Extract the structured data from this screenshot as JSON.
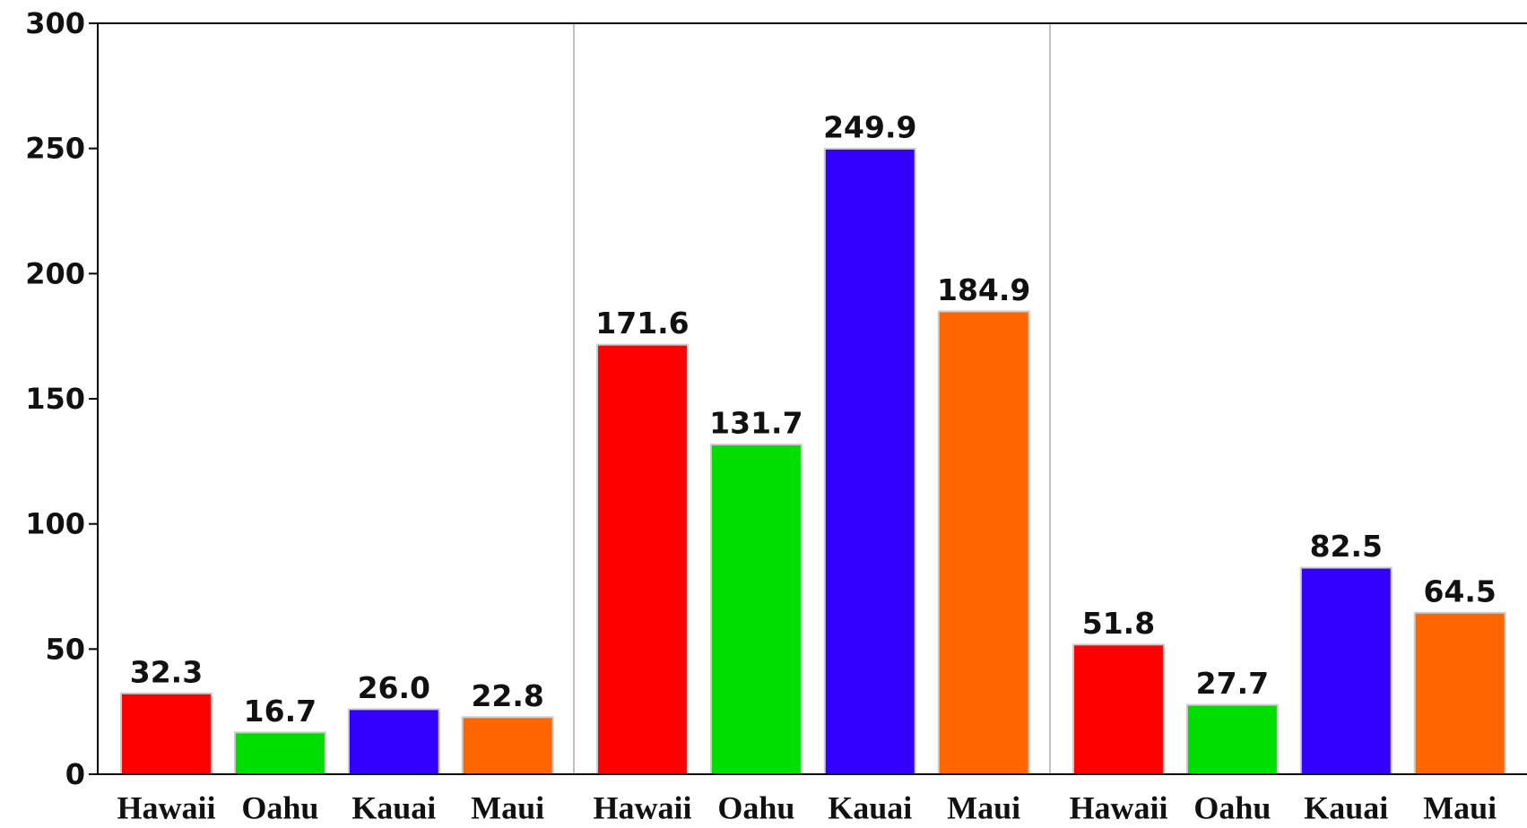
{
  "chart_data": {
    "type": "bar",
    "categories": [
      null,
      null,
      null
    ],
    "series": [
      {
        "name": "Hawaii",
        "color": "#ff0000",
        "values": [
          32.3,
          171.6,
          51.8
        ],
        "value_labels": [
          "32.3",
          "171.6",
          "51.8"
        ]
      },
      {
        "name": "Oahu",
        "color": "#00dd00",
        "values": [
          16.7,
          131.7,
          27.7
        ],
        "value_labels": [
          "16.7",
          "131.7",
          "27.7"
        ]
      },
      {
        "name": "Kauai",
        "color": "#3300ff",
        "values": [
          26.0,
          249.9,
          82.5
        ],
        "value_labels": [
          "26.0",
          "249.9",
          "82.5"
        ]
      },
      {
        "name": "Maui",
        "color": "#ff6600",
        "values": [
          22.8,
          184.9,
          64.5
        ],
        "value_labels": [
          "22.8",
          "184.9",
          "64.5"
        ]
      }
    ],
    "ylim": [
      0,
      300
    ],
    "yticks": [
      0,
      50,
      100,
      150,
      200,
      250,
      300
    ]
  }
}
